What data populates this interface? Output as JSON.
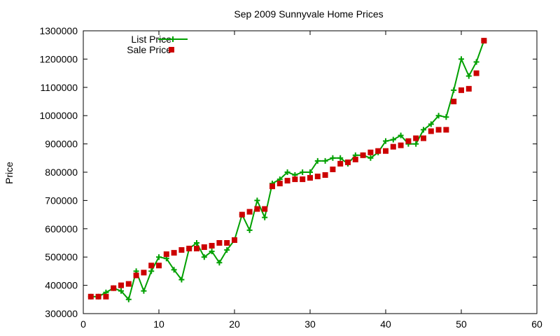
{
  "chart_data": {
    "type": "scatter",
    "title": "Sep 2009 Sunnyvale Home Prices",
    "xlabel": "",
    "ylabel": "Price",
    "xlim": [
      0,
      60
    ],
    "ylim": [
      300000,
      1300000
    ],
    "x_ticks": [
      "0",
      "10",
      "20",
      "30",
      "40",
      "50",
      "60"
    ],
    "y_ticks": [
      "300000",
      "400000",
      "500000",
      "600000",
      "700000",
      "800000",
      "900000",
      "1000000",
      "1100000",
      "1200000",
      "1300000"
    ],
    "grid": false,
    "legend_position": "top-left",
    "series": [
      {
        "name": "List Price",
        "style": "linespoints",
        "color": "#00a000",
        "x": [
          1,
          2,
          3,
          4,
          5,
          6,
          7,
          8,
          9,
          10,
          11,
          12,
          13,
          14,
          15,
          16,
          17,
          18,
          19,
          20,
          21,
          22,
          23,
          24,
          25,
          26,
          27,
          28,
          29,
          30,
          31,
          32,
          33,
          34,
          35,
          36,
          37,
          38,
          39,
          40,
          41,
          42,
          43,
          44,
          45,
          46,
          47,
          48,
          49,
          50,
          51,
          52,
          53
        ],
        "values": [
          360000,
          360000,
          375000,
          390000,
          380000,
          350000,
          450000,
          380000,
          450000,
          500000,
          495000,
          455000,
          420000,
          530000,
          550000,
          500000,
          520000,
          480000,
          525000,
          560000,
          650000,
          595000,
          700000,
          640000,
          760000,
          775000,
          800000,
          790000,
          800000,
          800000,
          840000,
          840000,
          850000,
          850000,
          830000,
          860000,
          860000,
          850000,
          870000,
          910000,
          915000,
          930000,
          900000,
          900000,
          950000,
          970000,
          1000000,
          995000,
          1090000,
          1200000,
          1140000,
          1190000,
          1265000
        ]
      },
      {
        "name": "Sale Price",
        "style": "points",
        "color": "#cc0000",
        "x": [
          1,
          2,
          3,
          4,
          5,
          6,
          7,
          8,
          9,
          10,
          11,
          12,
          13,
          14,
          15,
          16,
          17,
          18,
          19,
          20,
          21,
          22,
          23,
          24,
          25,
          26,
          27,
          28,
          29,
          30,
          31,
          32,
          33,
          34,
          35,
          36,
          37,
          38,
          39,
          40,
          41,
          42,
          43,
          44,
          45,
          46,
          47,
          48,
          49,
          50,
          51,
          52,
          53
        ],
        "values": [
          360000,
          360000,
          360000,
          390000,
          400000,
          405000,
          435000,
          445000,
          470000,
          470000,
          510000,
          515000,
          525000,
          530000,
          530000,
          535000,
          540000,
          550000,
          550000,
          560000,
          650000,
          660000,
          670000,
          670000,
          750000,
          760000,
          770000,
          775000,
          775000,
          780000,
          785000,
          790000,
          810000,
          830000,
          835000,
          845000,
          860000,
          870000,
          875000,
          875000,
          890000,
          895000,
          910000,
          920000,
          920000,
          945000,
          950000,
          950000,
          1050000,
          1090000,
          1095000,
          1150000,
          1265000
        ]
      }
    ]
  }
}
